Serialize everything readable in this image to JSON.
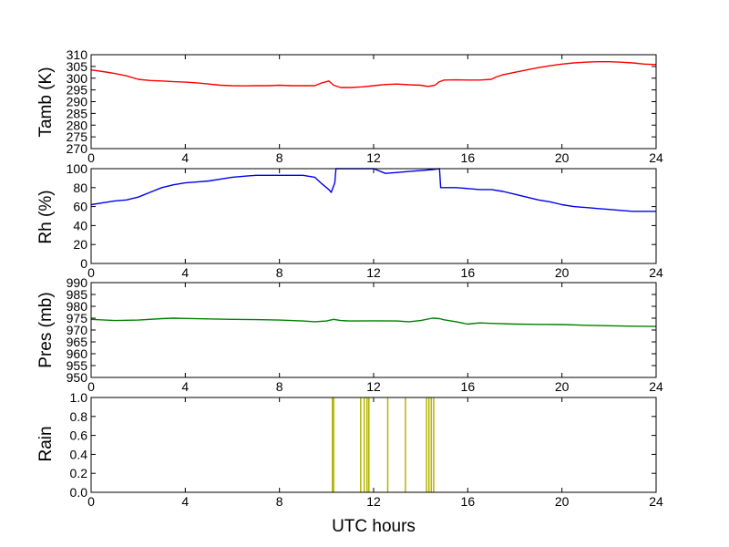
{
  "chart_data": [
    {
      "type": "line",
      "ylabel": "Tamb (K)",
      "xlabel": "",
      "xlim": [
        0,
        24
      ],
      "ylim": [
        270,
        310
      ],
      "xticks": [
        "0",
        "4",
        "8",
        "12",
        "16",
        "20",
        "24"
      ],
      "yticks": [
        "270",
        "275",
        "280",
        "285",
        "290",
        "295",
        "300",
        "305",
        "310"
      ],
      "color": "#ff0000",
      "series": [
        {
          "x": [
            0,
            0.5,
            1,
            1.5,
            2,
            2.5,
            3,
            3.5,
            4,
            4.5,
            5,
            5.5,
            6,
            6.5,
            7,
            7.5,
            8,
            8.5,
            9,
            9.5,
            9.8,
            10.0,
            10.1,
            10.3,
            10.6,
            11,
            11.5,
            12,
            12.5,
            13,
            13.5,
            14,
            14.3,
            14.6,
            14.8,
            15,
            15.5,
            16,
            16.5,
            17,
            17.2,
            17.5,
            18,
            18.5,
            19,
            19.5,
            20,
            20.5,
            21,
            21.5,
            22,
            22.5,
            23,
            23.5,
            24
          ],
          "y": [
            303.5,
            302.8,
            302,
            301,
            299.5,
            299,
            298.8,
            298.5,
            298.3,
            298,
            297.5,
            297,
            296.8,
            296.7,
            296.8,
            296.8,
            297,
            296.8,
            296.8,
            296.8,
            298,
            298.5,
            298.8,
            297,
            296,
            296,
            296.3,
            296.8,
            297.3,
            297.5,
            297.2,
            297,
            296.5,
            297,
            298.5,
            299.2,
            299.3,
            299.2,
            299.2,
            299.5,
            300.5,
            301.5,
            302.5,
            303.5,
            304.5,
            305.3,
            306,
            306.5,
            306.8,
            307,
            307,
            306.8,
            306.5,
            306,
            305.8
          ]
        }
      ]
    },
    {
      "type": "line",
      "ylabel": "Rh (%)",
      "xlabel": "",
      "xlim": [
        0,
        24
      ],
      "ylim": [
        0,
        100
      ],
      "xticks": [
        "0",
        "4",
        "8",
        "12",
        "16",
        "20",
        "24"
      ],
      "yticks": [
        "0",
        "20",
        "40",
        "60",
        "80",
        "100"
      ],
      "color": "#0000ee",
      "series": [
        {
          "x": [
            0,
            0.5,
            1,
            1.5,
            2,
            2.5,
            3,
            3.5,
            4,
            4.5,
            5,
            5.5,
            6,
            6.5,
            7,
            7.5,
            8,
            8.5,
            9,
            9.5,
            9.8,
            10.0,
            10.1,
            10.2,
            10.35,
            10.4,
            11,
            12,
            12.5,
            13,
            13.5,
            14,
            14.5,
            14.8,
            14.85,
            15,
            15.5,
            16,
            16.5,
            17,
            17.5,
            18,
            18.5,
            19,
            19.5,
            20,
            20.5,
            21,
            21.5,
            22,
            22.5,
            23,
            23.5,
            24
          ],
          "y": [
            62,
            64,
            66,
            67,
            70,
            75,
            80,
            83,
            85,
            86,
            87,
            89,
            91,
            92,
            93,
            93,
            93,
            93,
            93,
            91,
            84,
            80,
            78,
            75,
            85,
            100,
            100,
            100,
            95,
            96,
            97,
            98,
            99,
            100,
            80,
            80,
            80,
            79,
            78,
            78,
            76,
            73,
            70,
            67,
            65,
            62,
            60,
            59,
            58,
            57,
            56,
            55,
            55,
            55
          ]
        }
      ]
    },
    {
      "type": "line",
      "ylabel": "Pres (mb)",
      "xlabel": "",
      "xlim": [
        0,
        24
      ],
      "ylim": [
        950,
        990
      ],
      "xticks": [
        "0",
        "4",
        "8",
        "12",
        "16",
        "20",
        "24"
      ],
      "yticks": [
        "950",
        "955",
        "960",
        "965",
        "970",
        "975",
        "980",
        "985",
        "990"
      ],
      "color": "#008000",
      "series": [
        {
          "x": [
            0,
            1,
            2,
            3,
            3.5,
            4,
            5,
            6,
            7,
            8,
            9,
            9.5,
            10,
            10.3,
            10.6,
            11,
            12,
            13,
            13.5,
            14,
            14.5,
            14.8,
            15,
            15.5,
            16,
            16.5,
            17,
            18,
            19,
            20,
            21,
            22,
            23,
            24
          ],
          "y": [
            974.5,
            974,
            974.2,
            974.8,
            975,
            974.9,
            974.7,
            974.5,
            974.4,
            974.2,
            973.8,
            973.5,
            973.8,
            974.5,
            974,
            973.8,
            973.9,
            973.8,
            973.5,
            974,
            975,
            974.8,
            974.3,
            973.5,
            972.5,
            973,
            972.8,
            972.5,
            972.4,
            972.3,
            972,
            971.8,
            971.6,
            971.5
          ]
        }
      ]
    },
    {
      "type": "bar",
      "ylabel": "Rain",
      "xlabel": "UTC hours",
      "xlim": [
        0,
        24
      ],
      "ylim": [
        0,
        1
      ],
      "xticks": [
        "0",
        "4",
        "8",
        "12",
        "16",
        "20",
        "24"
      ],
      "yticks": [
        "0.0",
        "0.2",
        "0.4",
        "0.6",
        "0.8",
        "1.0"
      ],
      "color": "#b5b500",
      "series": [
        {
          "x": [
            10.25,
            10.3,
            11.45,
            11.6,
            11.72,
            11.8,
            12.6,
            13.35,
            14.25,
            14.35,
            14.45,
            14.55
          ],
          "y": [
            1,
            1,
            1,
            1,
            1,
            1,
            1,
            1,
            1,
            1,
            1,
            1
          ]
        }
      ]
    }
  ]
}
